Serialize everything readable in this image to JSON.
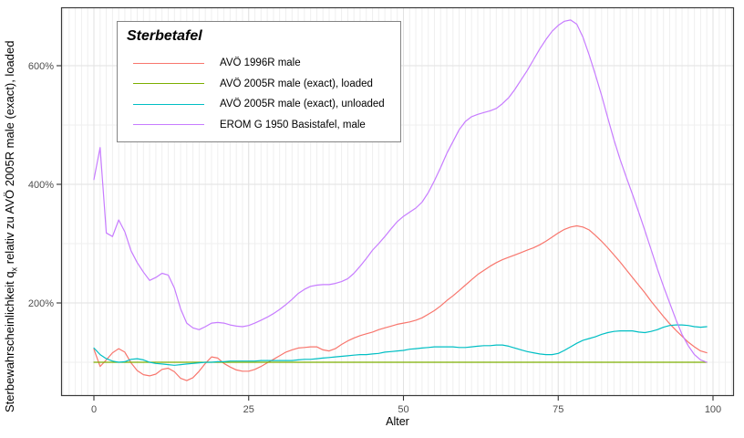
{
  "chart_data": {
    "type": "line",
    "x_start": 0,
    "x_step": 1,
    "x_axis": {
      "label": "Alter",
      "ticks": [
        {
          "label": "0",
          "value": 0
        },
        {
          "label": "25",
          "value": 25
        },
        {
          "label": "50",
          "value": 50
        },
        {
          "label": "75",
          "value": 75
        },
        {
          "label": "100",
          "value": 100
        }
      ],
      "minor_grid_step": 1,
      "visible_range": [
        -5,
        103.5
      ]
    },
    "y_axis": {
      "ticks": [
        {
          "label": "200%",
          "value": 200
        },
        {
          "label": "400%",
          "value": 400
        },
        {
          "label": "600%",
          "value": 600
        }
      ],
      "minor_grid_values": [
        100,
        300,
        500
      ],
      "visible_range": [
        43,
        698
      ]
    },
    "ylabel_prefix": "Sterbewahrscheinlichkeit  q",
    "ylabel_sub": "x",
    "ylabel_suffix": " relativ zu AVÖ 2005R male (exact), loaded",
    "xlabel": "Alter",
    "grid": true,
    "legend_position": "inside-top-left",
    "series": [
      {
        "name": "AVÖ 1996R male",
        "color": "#F8766D",
        "values": [
          122,
          93,
          104,
          116,
          123,
          117,
          99,
          86,
          79,
          77,
          80,
          88,
          90,
          84,
          73,
          69,
          74,
          85,
          98,
          109,
          107,
          98,
          92,
          87,
          85,
          85,
          88,
          93,
          99,
          105,
          111,
          117,
          121,
          124,
          125,
          126,
          126,
          121,
          119,
          123,
          130,
          136,
          141,
          145,
          148,
          151,
          155,
          158,
          161,
          164,
          166,
          168,
          171,
          175,
          181,
          187,
          195,
          204,
          212,
          221,
          230,
          239,
          248,
          255,
          262,
          268,
          273,
          277,
          281,
          285,
          289,
          293,
          298,
          304,
          311,
          318,
          324,
          328,
          330,
          328,
          323,
          314,
          304,
          293,
          281,
          269,
          256,
          243,
          230,
          217,
          203,
          190,
          177,
          165,
          154,
          144,
          134,
          126,
          119,
          116
        ]
      },
      {
        "name": "AVÖ 2005R male (exact), loaded",
        "color": "#7CAE00",
        "values": [
          100,
          100,
          100,
          100,
          100,
          100,
          100,
          100,
          100,
          100,
          100,
          100,
          100,
          100,
          100,
          100,
          100,
          100,
          100,
          100,
          100,
          100,
          100,
          100,
          100,
          100,
          100,
          100,
          100,
          100,
          100,
          100,
          100,
          100,
          100,
          100,
          100,
          100,
          100,
          100,
          100,
          100,
          100,
          100,
          100,
          100,
          100,
          100,
          100,
          100,
          100,
          100,
          100,
          100,
          100,
          100,
          100,
          100,
          100,
          100,
          100,
          100,
          100,
          100,
          100,
          100,
          100,
          100,
          100,
          100,
          100,
          100,
          100,
          100,
          100,
          100,
          100,
          100,
          100,
          100,
          100,
          100,
          100,
          100,
          100,
          100,
          100,
          100,
          100,
          100,
          100,
          100,
          100,
          100,
          100,
          100,
          100,
          100,
          100,
          100
        ]
      },
      {
        "name": "AVÖ 2005R male (exact), unloaded",
        "color": "#00BFC4",
        "values": [
          124,
          113,
          106,
          102,
          100,
          101,
          105,
          106,
          104,
          100,
          98,
          97,
          96,
          95,
          96,
          97,
          98,
          99,
          100,
          100,
          101,
          101,
          102,
          102,
          102,
          102,
          102,
          103,
          103,
          103,
          103,
          103,
          103,
          104,
          105,
          105,
          106,
          107,
          108,
          109,
          110,
          111,
          112,
          113,
          113,
          114,
          115,
          117,
          118,
          119,
          120,
          122,
          123,
          124,
          125,
          126,
          126,
          126,
          126,
          125,
          125,
          126,
          127,
          128,
          128,
          129,
          129,
          127,
          124,
          121,
          118,
          116,
          114,
          113,
          113,
          115,
          120,
          126,
          132,
          137,
          140,
          143,
          147,
          150,
          152,
          153,
          153,
          153,
          151,
          150,
          152,
          155,
          159,
          162,
          163,
          163,
          162,
          160,
          159,
          160
        ]
      },
      {
        "name": "EROM G 1950 Basistafel, male",
        "color": "#C77CFF",
        "values": [
          408,
          462,
          318,
          312,
          340,
          320,
          288,
          268,
          252,
          238,
          243,
          250,
          247,
          225,
          190,
          166,
          158,
          155,
          160,
          166,
          167,
          166,
          163,
          161,
          160,
          162,
          166,
          171,
          176,
          182,
          189,
          197,
          206,
          216,
          223,
          228,
          230,
          231,
          231,
          233,
          236,
          241,
          250,
          262,
          275,
          289,
          300,
          312,
          325,
          337,
          346,
          353,
          360,
          370,
          386,
          406,
          428,
          452,
          472,
          492,
          506,
          514,
          518,
          521,
          524,
          528,
          536,
          546,
          560,
          576,
          592,
          610,
          628,
          644,
          658,
          668,
          675,
          677,
          670,
          648,
          618,
          585,
          550,
          512,
          475,
          442,
          412,
          383,
          353,
          322,
          290,
          258,
          228,
          200,
          172,
          147,
          128,
          113,
          104,
          100
        ]
      }
    ],
    "colors": {
      "panel_border": "#3a3a3a",
      "grid_major": "#e2e2e2",
      "grid_minor": "#efefef",
      "tick_mark": "#333333",
      "tick_label": "#4d4d4d",
      "axis_title": "#000000"
    }
  },
  "legend": {
    "title": "Sterbetafel",
    "items": [
      {
        "label": "AVÖ 1996R male"
      },
      {
        "label": "AVÖ 2005R male (exact), loaded"
      },
      {
        "label": "AVÖ 2005R male (exact), unloaded"
      },
      {
        "label": "EROM G 1950 Basistafel, male"
      }
    ]
  }
}
